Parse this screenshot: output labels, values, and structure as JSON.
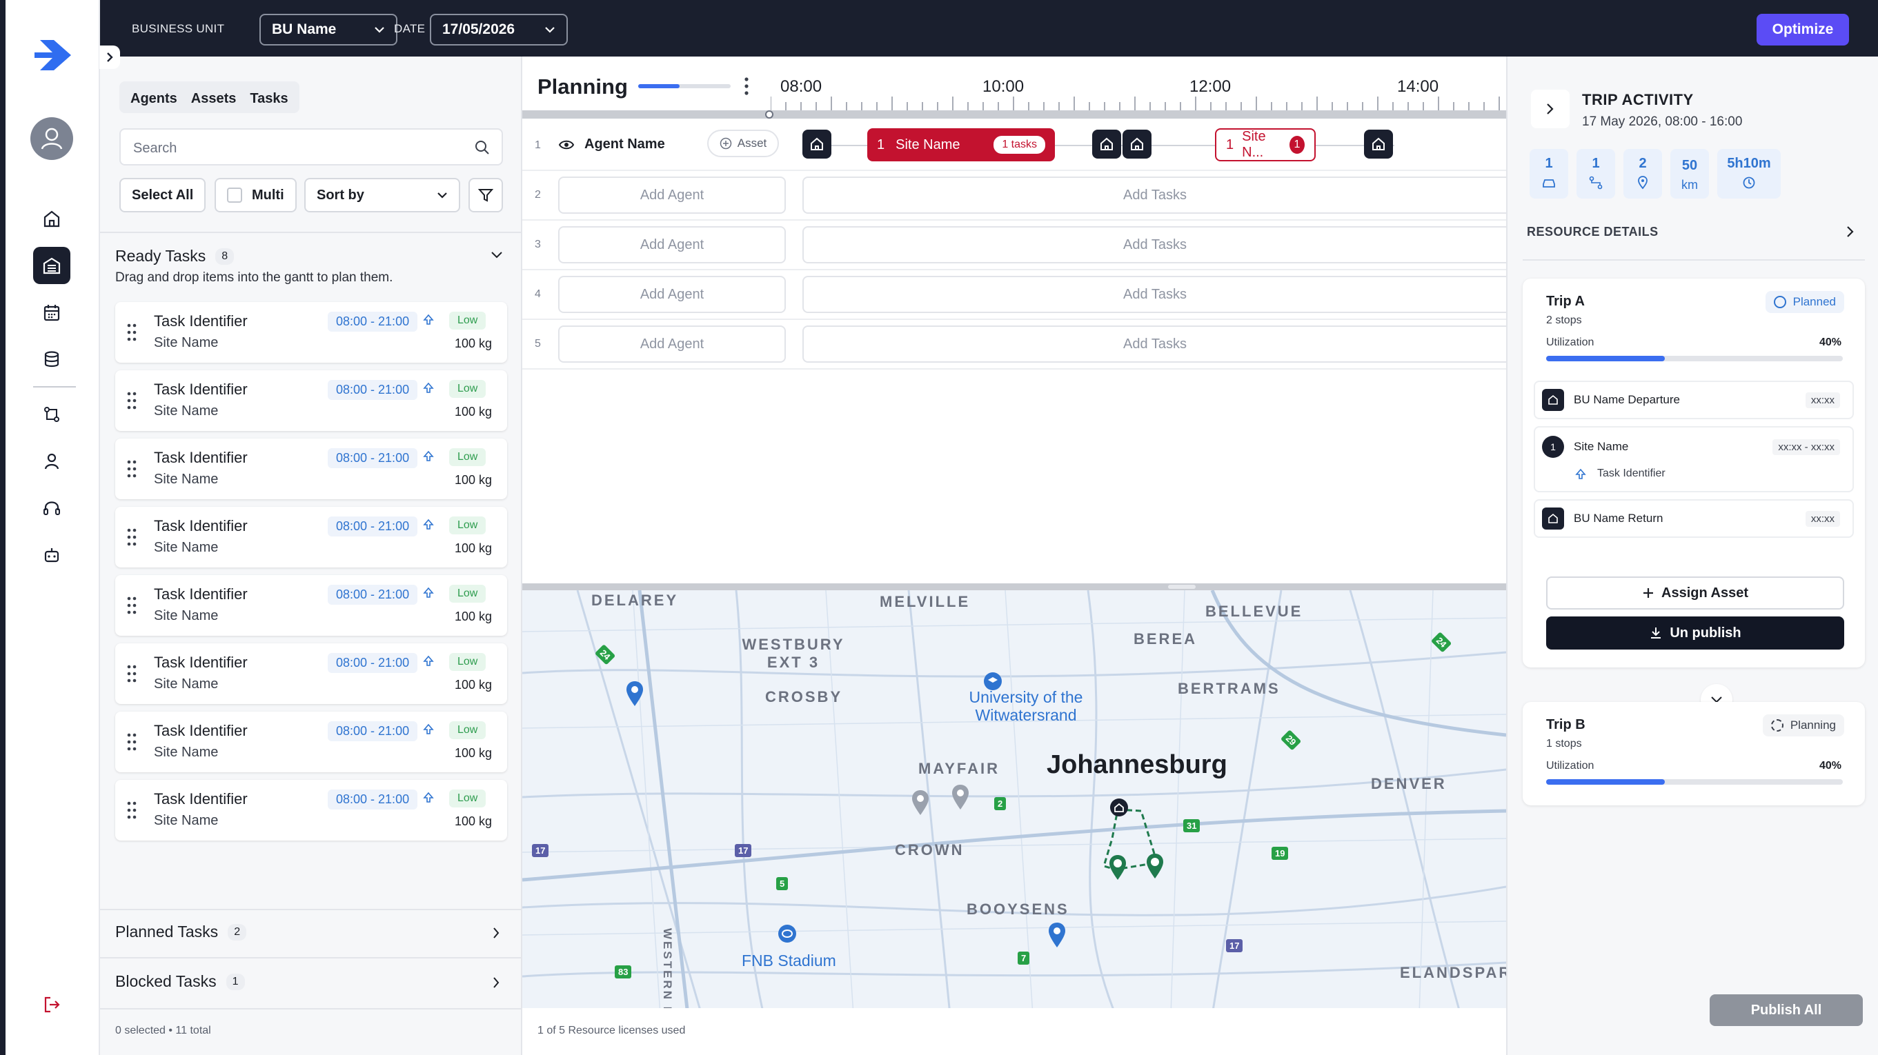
{
  "topbar": {
    "business_unit_label": "BUSINESS UNIT",
    "business_unit_value": "BU Name",
    "date_label": "DATE",
    "date_value": "17/05/2026",
    "optimize_label": "Optimize"
  },
  "left": {
    "tabs": [
      "Agents",
      "Assets",
      "Tasks"
    ],
    "search_placeholder": "Search",
    "select_all": "Select All",
    "multi": "Multi",
    "sort_by": "Sort by",
    "ready_title": "Ready Tasks",
    "ready_count": "8",
    "ready_sub": "Drag and drop items into the gantt to plan them.",
    "tasks": [
      {
        "title": "Task Identifier",
        "site": "Site Name",
        "time": "08:00 - 21:00",
        "priority": "Low",
        "weight": "100 kg"
      },
      {
        "title": "Task Identifier",
        "site": "Site Name",
        "time": "08:00 - 21:00",
        "priority": "Low",
        "weight": "100 kg"
      },
      {
        "title": "Task Identifier",
        "site": "Site Name",
        "time": "08:00 - 21:00",
        "priority": "Low",
        "weight": "100 kg"
      },
      {
        "title": "Task Identifier",
        "site": "Site Name",
        "time": "08:00 - 21:00",
        "priority": "Low",
        "weight": "100 kg"
      },
      {
        "title": "Task Identifier",
        "site": "Site Name",
        "time": "08:00 - 21:00",
        "priority": "Low",
        "weight": "100 kg"
      },
      {
        "title": "Task Identifier",
        "site": "Site Name",
        "time": "08:00 - 21:00",
        "priority": "Low",
        "weight": "100 kg"
      },
      {
        "title": "Task Identifier",
        "site": "Site Name",
        "time": "08:00 - 21:00",
        "priority": "Low",
        "weight": "100 kg"
      },
      {
        "title": "Task Identifier",
        "site": "Site Name",
        "time": "08:00 - 21:00",
        "priority": "Low",
        "weight": "100 kg"
      }
    ],
    "planned_title": "Planned Tasks",
    "planned_count": "2",
    "blocked_title": "Blocked Tasks",
    "blocked_count": "1",
    "footer": "0 selected • 11 total"
  },
  "planning": {
    "title": "Planning",
    "progress": 0.45,
    "hours": [
      "08:00",
      "10:00",
      "12:00",
      "14:00"
    ],
    "row1": {
      "num": "1",
      "agent": "Agent Name",
      "asset": "Asset",
      "site1_num": "1",
      "site1_name": "Site Name",
      "site1_tasks": "1 tasks",
      "site2_num": "1",
      "site2_name": "Site N...",
      "site2_badge": "1"
    },
    "empty_rows": [
      {
        "num": "2",
        "add_agent": "Add Agent",
        "add_tasks": "Add Tasks"
      },
      {
        "num": "3",
        "add_agent": "Add Agent",
        "add_tasks": "Add Tasks"
      },
      {
        "num": "4",
        "add_agent": "Add Agent",
        "add_tasks": "Add Tasks"
      },
      {
        "num": "5",
        "add_agent": "Add Agent",
        "add_tasks": "Add Tasks"
      }
    ],
    "license_footer": "1 of 5 Resource licenses used"
  },
  "map": {
    "city": "Johannesburg",
    "areas": [
      "DELAREY",
      "MELVILLE",
      "BELLEVUE",
      "WESTBURY EXT 3",
      "BEREA",
      "CROSBY",
      "BERTRAMS",
      "MAYFAIR",
      "DENVER",
      "CROWN",
      "BOOYSENS",
      "ELANDSPARK",
      "WESTERN BYPASS"
    ],
    "pois": [
      "University of the Witwatersrand",
      "FNB Stadium"
    ],
    "highways": [
      "24",
      "24",
      "29",
      "2",
      "31",
      "19",
      "17",
      "17",
      "5",
      "17",
      "7",
      "83"
    ]
  },
  "right": {
    "trip_activity": "TRIP ACTIVITY",
    "trip_range": "17 May 2026, 08:00 - 16:00",
    "stats": [
      {
        "value": "1",
        "icon": "car-icon"
      },
      {
        "value": "1",
        "icon": "route-icon"
      },
      {
        "value": "2",
        "icon": "pin-icon"
      },
      {
        "value": "50",
        "unit": "km"
      },
      {
        "value": "5h10m",
        "icon": "clock-icon"
      }
    ],
    "resource_details": "RESOURCE DETAILS",
    "trip_a": {
      "name": "Trip A",
      "stops": "2 stops",
      "status": "Planned",
      "util_label": "Utilization",
      "util_pct": "40%",
      "util_value": 0.4,
      "departure": "BU Name Departure",
      "departure_time": "xx:xx",
      "stop_num": "1",
      "stop_site": "Site Name",
      "stop_time": "xx:xx - xx:xx",
      "stop_task": "Task Identifier",
      "return": "BU Name Return",
      "return_time": "xx:xx",
      "assign": "Assign Asset",
      "unpublish": "Un publish"
    },
    "trip_b": {
      "name": "Trip B",
      "stops": "1 stops",
      "status": "Planning",
      "util_label": "Utilization",
      "util_pct": "40%",
      "util_value": 0.4
    },
    "publish_all": "Publish All"
  },
  "colors": {
    "accent": "#5b4cf5",
    "dark": "#1a1f2e",
    "site_red": "#c3122f",
    "blue": "#2f74d0",
    "green_low": "#2f9d4f",
    "highway_green": "#27a046",
    "highway_purple": "#5b5fa8"
  }
}
